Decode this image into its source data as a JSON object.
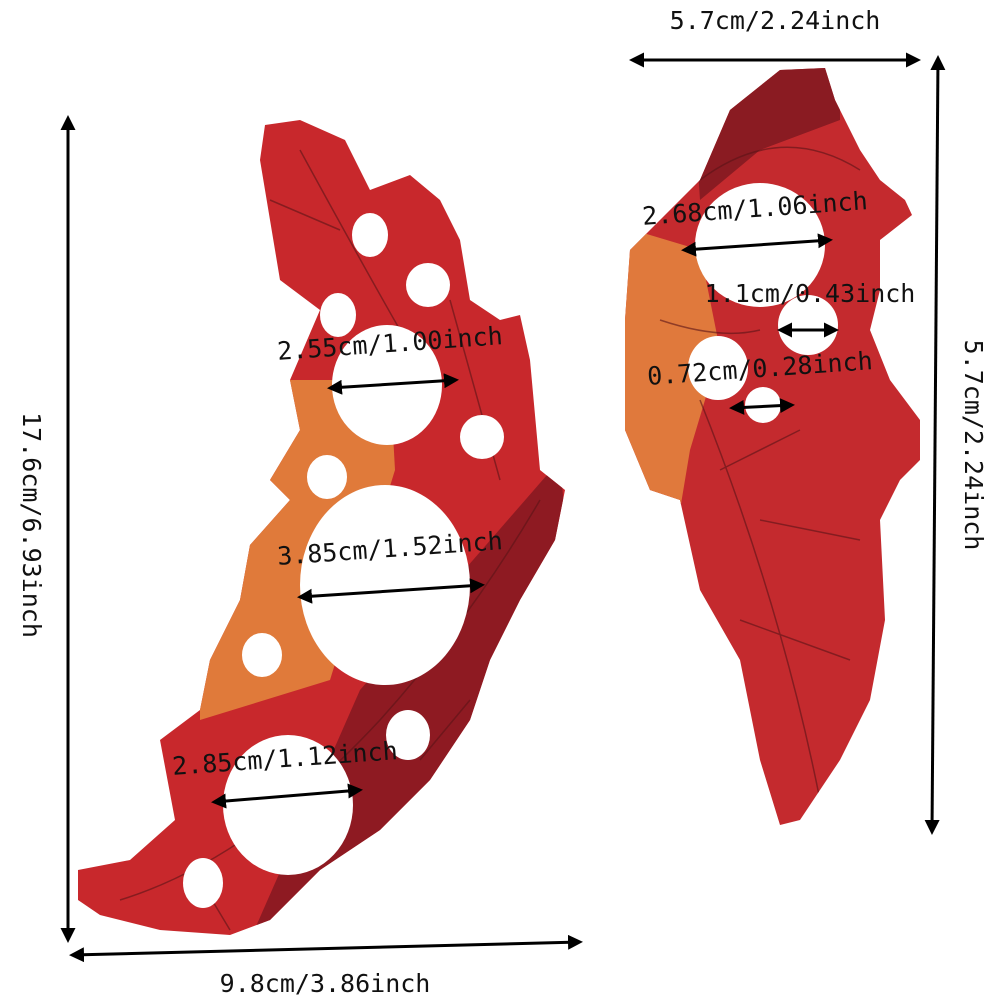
{
  "left_piece": {
    "height": "17.6cm/6.93inch",
    "width": "9.8cm/3.86inch",
    "holes": [
      "2.55cm/1.00inch",
      "3.85cm/1.52inch",
      "2.85cm/1.12inch"
    ]
  },
  "right_piece": {
    "width": "5.7cm/2.24inch",
    "height": "5.7cm/2.24inch",
    "holes": [
      "2.68cm/1.06inch",
      "1.1cm/0.43inch",
      "0.72cm/0.28inch"
    ]
  }
}
